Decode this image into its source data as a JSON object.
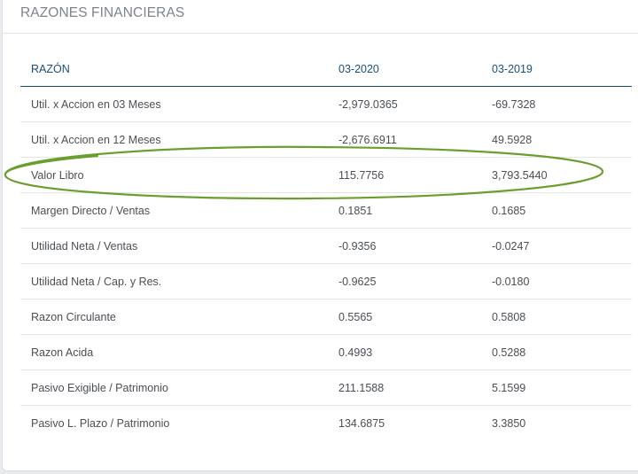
{
  "title": "RAZONES FINANCIERAS",
  "headers": {
    "name": "RAZÓN",
    "period1": "03-2020",
    "period2": "03-2019"
  },
  "rows": [
    {
      "name": "Util. x Accion en 03 Meses",
      "v1": "-2,979.0365",
      "v2": "-69.7328"
    },
    {
      "name": "Util. x Accion en 12 Meses",
      "v1": "-2,676.6911",
      "v2": "49.5928"
    },
    {
      "name": "Valor Libro",
      "v1": "115.7756",
      "v2": "3,793.5440"
    },
    {
      "name": "Margen Directo / Ventas",
      "v1": "0.1851",
      "v2": "0.1685"
    },
    {
      "name": "Utilidad Neta / Ventas",
      "v1": "-0.9356",
      "v2": "-0.0247"
    },
    {
      "name": "Utilidad Neta / Cap. y Res.",
      "v1": "-0.9625",
      "v2": "-0.0180"
    },
    {
      "name": "Razon Circulante",
      "v1": "0.5565",
      "v2": "0.5808"
    },
    {
      "name": "Razon Acida",
      "v1": "0.4993",
      "v2": "0.5288"
    },
    {
      "name": "Pasivo Exigible / Patrimonio",
      "v1": "211.1588",
      "v2": "5.1599"
    },
    {
      "name": "Pasivo L. Plazo / Patrimonio",
      "v1": "134.6875",
      "v2": "3.3850"
    }
  ],
  "colors": {
    "header_text": "#1b4f79",
    "highlight_ellipse": "#6a9f2e"
  }
}
